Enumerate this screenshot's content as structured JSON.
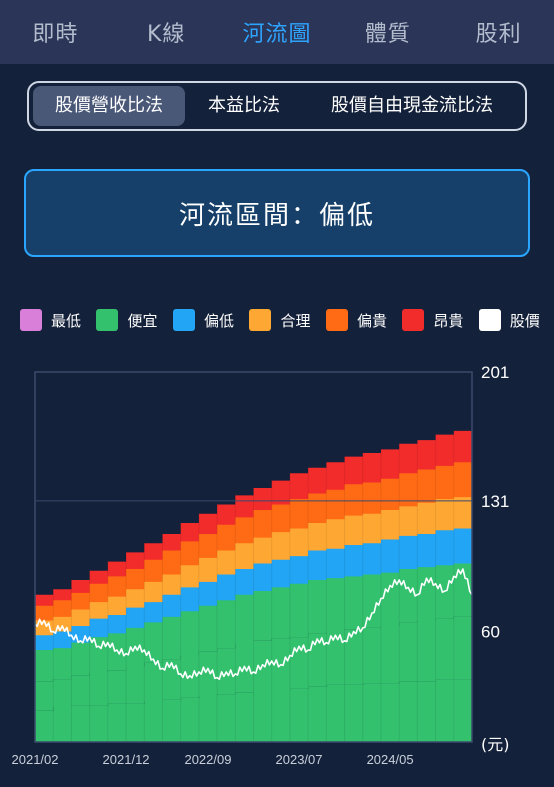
{
  "nav": {
    "tabs": [
      {
        "label": "即時",
        "active": false
      },
      {
        "label": "K線",
        "active": false
      },
      {
        "label": "河流圖",
        "active": true
      },
      {
        "label": "體質",
        "active": false
      },
      {
        "label": "股利",
        "active": false
      }
    ]
  },
  "methods": {
    "options": [
      {
        "label": "股價營收比法",
        "active": true
      },
      {
        "label": "本益比法",
        "active": false
      },
      {
        "label": "股價自由現金流比法",
        "active": false
      }
    ]
  },
  "zone": {
    "text": "河流區間：偏低"
  },
  "colors": {
    "background": "#14213a",
    "accent": "#2fa4ff",
    "plot_border": "#3b4a6b"
  },
  "chart_data": {
    "type": "area",
    "unit_label": "(元)",
    "ylim": [
      0,
      201
    ],
    "y_ticks": [
      201,
      131,
      60
    ],
    "x_tick_labels": [
      "2021/02",
      "2021/12",
      "2022/09",
      "2023/07",
      "2024/05"
    ],
    "x_tick_positions": [
      0,
      10,
      19,
      29,
      39
    ],
    "legend": [
      {
        "name": "最低",
        "color": "#d97fd9"
      },
      {
        "name": "便宜",
        "color": "#33c16e"
      },
      {
        "name": "偏低",
        "color": "#22a5f5"
      },
      {
        "name": "合理",
        "color": "#ffa733"
      },
      {
        "name": "偏貴",
        "color": "#ff6a14"
      },
      {
        "name": "昂貴",
        "color": "#f22b2b"
      },
      {
        "name": "股價",
        "color": "#ffffff"
      }
    ],
    "bands": {
      "bottom": [
        17,
        17,
        19,
        19,
        20,
        20,
        20,
        20,
        21,
        21,
        21,
        21,
        22,
        22,
        23,
        23,
        24,
        24,
        25,
        25,
        26,
        26,
        27,
        27,
        28,
        28,
        28,
        28,
        29,
        29,
        30,
        30,
        31,
        31,
        31,
        31,
        32,
        32,
        32,
        32,
        33,
        33,
        33,
        33,
        34,
        34,
        34,
        34
      ],
      "cheap": [
        33,
        33,
        34,
        34,
        36,
        36,
        38,
        38,
        39,
        39,
        41,
        41,
        43,
        43,
        45,
        45,
        47,
        47,
        49,
        49,
        51,
        51,
        53,
        53,
        55,
        55,
        56,
        56,
        57,
        57,
        59,
        59,
        60,
        60,
        61,
        61,
        62,
        62,
        63,
        63,
        65,
        65,
        66,
        66,
        67,
        67,
        68,
        68
      ],
      "low": [
        50,
        50,
        51,
        51,
        54,
        54,
        57,
        57,
        59,
        59,
        62,
        62,
        65,
        65,
        68,
        68,
        71,
        71,
        74,
        74,
        77,
        77,
        80,
        80,
        82,
        82,
        84,
        84,
        86,
        86,
        88,
        88,
        89,
        89,
        90,
        90,
        91,
        91,
        92,
        92,
        94,
        94,
        95,
        95,
        96,
        96,
        97,
        97
      ],
      "fair": [
        58,
        58,
        60,
        60,
        63,
        63,
        67,
        67,
        69,
        69,
        73,
        73,
        76,
        76,
        80,
        80,
        84,
        84,
        87,
        87,
        91,
        91,
        94,
        94,
        97,
        97,
        99,
        99,
        101,
        101,
        104,
        104,
        105,
        105,
        107,
        107,
        108,
        108,
        110,
        110,
        112,
        112,
        113,
        113,
        115,
        115,
        116,
        116
      ],
      "pricey": [
        66,
        66,
        68,
        68,
        72,
        72,
        76,
        76,
        79,
        79,
        83,
        83,
        87,
        87,
        91,
        91,
        96,
        96,
        100,
        100,
        104,
        104,
        108,
        108,
        111,
        111,
        114,
        114,
        116,
        116,
        119,
        119,
        121,
        121,
        123,
        123,
        124,
        124,
        126,
        126,
        128,
        128,
        130,
        130,
        132,
        132,
        133,
        133
      ],
      "expensive": [
        74,
        74,
        77,
        77,
        81,
        81,
        86,
        86,
        90,
        90,
        94,
        94,
        99,
        99,
        104,
        104,
        109,
        109,
        113,
        113,
        118,
        118,
        122,
        122,
        126,
        126,
        129,
        129,
        132,
        132,
        135,
        135,
        137,
        137,
        140,
        140,
        141,
        141,
        143,
        143,
        146,
        146,
        148,
        148,
        150,
        150,
        152,
        152
      ],
      "top": [
        80,
        80,
        83,
        83,
        88,
        88,
        93,
        93,
        98,
        98,
        103,
        103,
        108,
        108,
        113,
        113,
        119,
        119,
        124,
        124,
        129,
        129,
        134,
        134,
        138,
        138,
        142,
        142,
        146,
        146,
        149,
        149,
        152,
        152,
        155,
        155,
        157,
        157,
        159,
        159,
        162,
        162,
        164,
        164,
        167,
        167,
        169,
        169
      ]
    },
    "price": {
      "x": [
        0,
        1,
        2,
        3,
        4,
        5,
        6,
        7,
        8,
        9,
        10,
        11,
        12,
        13,
        14,
        15,
        16,
        17,
        18,
        19,
        20,
        21,
        22,
        23,
        24,
        25,
        26,
        27,
        28,
        29,
        30,
        31,
        32,
        33,
        34,
        35,
        36,
        37,
        38,
        39,
        40,
        41,
        42,
        43,
        44,
        45,
        46,
        47,
        48
      ],
      "y": [
        64,
        66,
        60,
        63,
        58,
        55,
        57,
        52,
        54,
        50,
        48,
        52,
        50,
        45,
        40,
        43,
        37,
        36,
        38,
        40,
        35,
        38,
        37,
        41,
        38,
        42,
        44,
        42,
        47,
        52,
        50,
        56,
        54,
        58,
        55,
        60,
        62,
        70,
        78,
        85,
        88,
        84,
        80,
        89,
        86,
        82,
        90,
        94,
        80
      ]
    }
  }
}
